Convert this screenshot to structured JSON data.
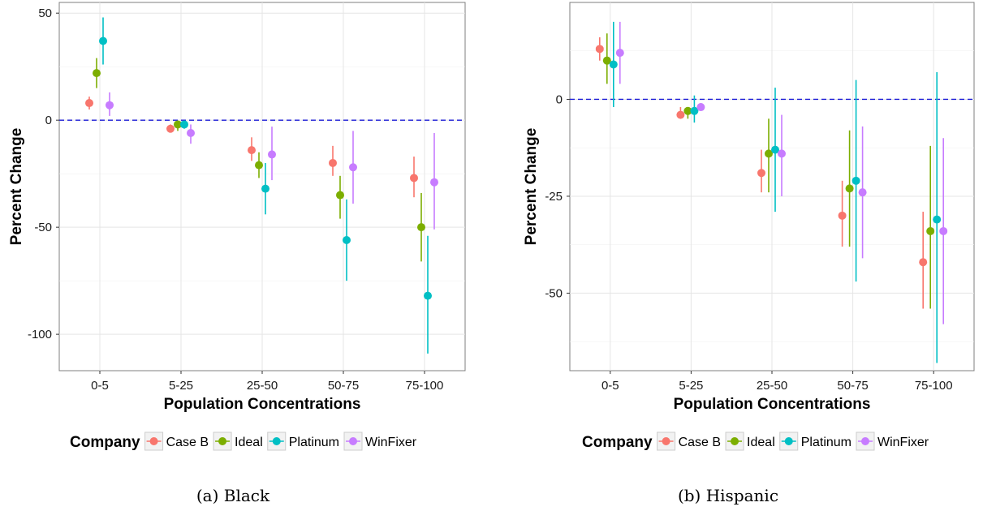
{
  "chart_data": [
    {
      "type": "scatter",
      "subtype": "point-range",
      "caption": "(a) Black",
      "xlabel": "Population Concentrations",
      "ylabel": "Percent Change",
      "categories": [
        "0-5",
        "5-25",
        "25-50",
        "50-75",
        "75-100"
      ],
      "ylim": [
        -117,
        55
      ],
      "yticks": [
        50,
        0,
        -50,
        -100
      ],
      "reference_line": 0,
      "grid": true,
      "legend_position": "bottom",
      "legend_title": "Company",
      "series": [
        {
          "name": "Case B",
          "color": "#F8766D",
          "values": [
            8,
            -4,
            -14,
            -20,
            -27
          ],
          "lower": [
            5,
            -5,
            -19,
            -26,
            -36
          ],
          "upper": [
            11,
            -2,
            -8,
            -12,
            -17
          ]
        },
        {
          "name": "Ideal",
          "color": "#7CAE00",
          "values": [
            22,
            -2,
            -21,
            -35,
            -50
          ],
          "lower": [
            15,
            -5,
            -27,
            -46,
            -66
          ],
          "upper": [
            29,
            -1,
            -15,
            -26,
            -34
          ]
        },
        {
          "name": "Platinum",
          "color": "#00BFC4",
          "values": [
            37,
            -2,
            -32,
            -56,
            -82
          ],
          "lower": [
            26,
            -4,
            -44,
            -75,
            -109
          ],
          "upper": [
            48,
            -1,
            -20,
            -37,
            -54
          ]
        },
        {
          "name": "WinFixer",
          "color": "#C77CFF",
          "values": [
            7,
            -6,
            -16,
            -22,
            -29
          ],
          "lower": [
            2,
            -11,
            -28,
            -39,
            -51
          ],
          "upper": [
            13,
            -2,
            -3,
            -5,
            -6
          ]
        }
      ]
    },
    {
      "type": "scatter",
      "subtype": "point-range",
      "caption": "(b) Hispanic",
      "xlabel": "Population Concentrations",
      "ylabel": "Percent Change",
      "categories": [
        "0-5",
        "5-25",
        "25-50",
        "50-75",
        "75-100"
      ],
      "ylim": [
        -70,
        25
      ],
      "yticks": [
        0,
        -25,
        -50
      ],
      "reference_line": 0,
      "grid": true,
      "legend_position": "bottom",
      "legend_title": "Company",
      "series": [
        {
          "name": "Case B",
          "color": "#F8766D",
          "values": [
            13,
            -4,
            -19,
            -30,
            -42
          ],
          "lower": [
            10,
            -5,
            -24,
            -38,
            -54
          ],
          "upper": [
            16,
            -2,
            -13,
            -21,
            -29
          ]
        },
        {
          "name": "Ideal",
          "color": "#7CAE00",
          "values": [
            10,
            -3,
            -14,
            -23,
            -34
          ],
          "lower": [
            4,
            -5,
            -24,
            -38,
            -54
          ],
          "upper": [
            17,
            -2,
            -5,
            -8,
            -12
          ]
        },
        {
          "name": "Platinum",
          "color": "#00BFC4",
          "values": [
            9,
            -3,
            -13,
            -21,
            -31
          ],
          "lower": [
            -2,
            -6,
            -29,
            -47,
            -68
          ],
          "upper": [
            20,
            1,
            3,
            5,
            7
          ]
        },
        {
          "name": "WinFixer",
          "color": "#C77CFF",
          "values": [
            12,
            -2,
            -14,
            -24,
            -34
          ],
          "lower": [
            4,
            -3,
            -25,
            -41,
            -58
          ],
          "upper": [
            20,
            -1,
            -4,
            -7,
            -10
          ]
        }
      ]
    }
  ]
}
